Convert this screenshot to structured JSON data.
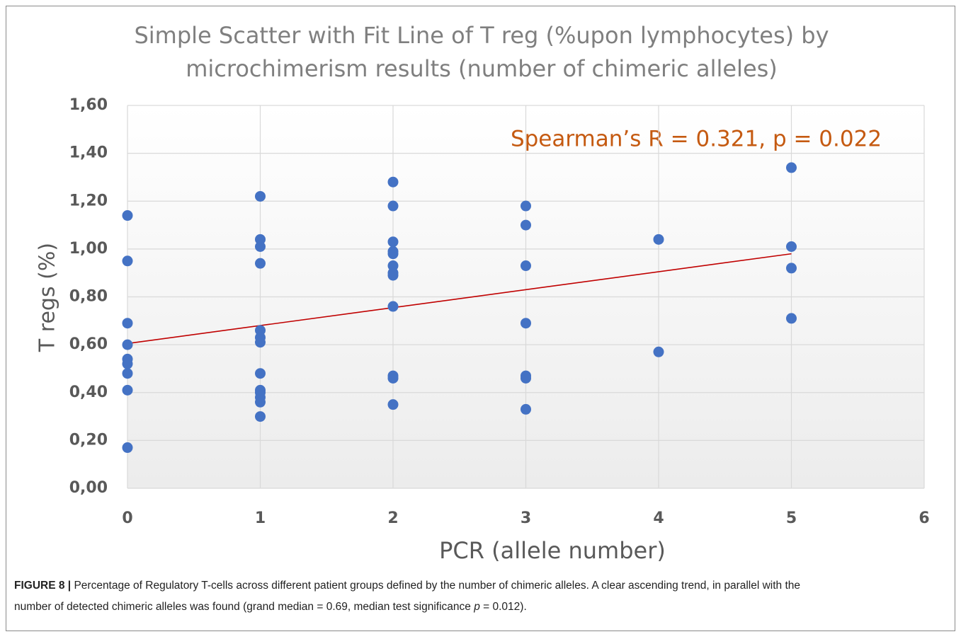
{
  "chart_data": {
    "type": "scatter",
    "title": [
      "Simple Scatter with Fit Line of T reg (%upon lymphocytes) by",
      "microchimerism results (number of chimeric alleles)"
    ],
    "annotation": "Spearman’s R = 0.321, p = 0.022",
    "xlabel": "PCR (allele number)",
    "ylabel": "T regs (%)",
    "x": [
      0,
      0,
      0,
      0,
      0,
      0,
      0,
      0,
      0,
      1,
      1,
      1,
      1,
      1,
      1,
      1,
      1,
      1,
      1,
      1,
      1,
      1,
      2,
      2,
      2,
      2,
      2,
      2,
      2,
      2,
      2,
      2,
      2,
      2,
      3,
      3,
      3,
      3,
      3,
      3,
      3,
      4,
      4,
      5,
      5,
      5,
      5
    ],
    "values": [
      1.14,
      0.95,
      0.69,
      0.6,
      0.54,
      0.52,
      0.48,
      0.41,
      0.17,
      1.22,
      1.04,
      1.01,
      0.94,
      0.66,
      0.63,
      0.61,
      0.48,
      0.41,
      0.4,
      0.38,
      0.36,
      0.3,
      1.28,
      1.18,
      1.03,
      0.99,
      0.98,
      0.93,
      0.9,
      0.89,
      0.76,
      0.47,
      0.46,
      0.35,
      1.18,
      1.1,
      0.93,
      0.69,
      0.47,
      0.46,
      0.33,
      1.04,
      0.57,
      1.34,
      1.01,
      0.92,
      0.71
    ],
    "color": "#4472c4",
    "fit_line": {
      "x": [
        0,
        5
      ],
      "values": [
        0.605,
        0.98
      ],
      "color": "#c00000"
    },
    "xlim": [
      0,
      6
    ],
    "xticks": [
      0,
      1,
      2,
      3,
      4,
      5,
      6
    ],
    "ylim": [
      0,
      1.6
    ],
    "yticks": [
      {
        "value": 0,
        "label": "0,00"
      },
      {
        "value": 0.2,
        "label": "0,20"
      },
      {
        "value": 0.4,
        "label": "0,40"
      },
      {
        "value": 0.6,
        "label": "0,60"
      },
      {
        "value": 0.8,
        "label": "0,80"
      },
      {
        "value": 1.0,
        "label": "1,00"
      },
      {
        "value": 1.2,
        "label": "1,20"
      },
      {
        "value": 1.4,
        "label": "1,40"
      },
      {
        "value": 1.6,
        "label": "1,60"
      }
    ],
    "grid": true
  },
  "caption": {
    "label": "FIGURE 8 |",
    "line1": " Percentage of Regulatory T-cells across different patient groups defined by the number of chimeric alleles. A clear ascending trend, in parallel with the",
    "line2_before": "number of detected chimeric alleles was found (grand median = 0.69, median test significance ",
    "italic": "p",
    "line2_after": " = 0.012)."
  }
}
